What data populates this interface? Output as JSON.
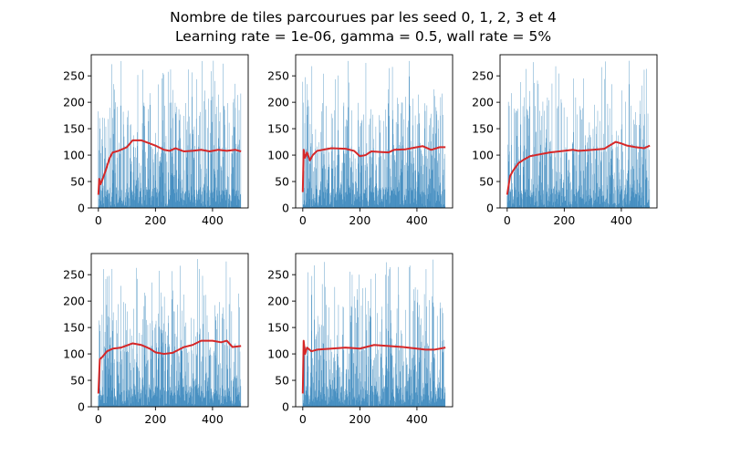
{
  "figure": {
    "title_line1": "Nombre de tiles parcourues par les seed 0, 1, 2, 3 et 4",
    "title_line2": "Learning rate = 1e-06, gamma = 0.5, wall rate = 5%"
  },
  "colors": {
    "bar": "#1f77b4",
    "line": "#d62728",
    "axes": "#000000",
    "background": "#ffffff"
  },
  "chart_data": [
    {
      "type": "bar",
      "seed": 0,
      "xlim": [
        -25,
        525
      ],
      "ylim": [
        0,
        290
      ],
      "xticks": [
        0,
        200,
        400
      ],
      "yticks": [
        0,
        50,
        100,
        150,
        200,
        250
      ],
      "n_episodes": 500,
      "bar_range": [
        0,
        280
      ],
      "bar_mean": 108,
      "moving_average": [
        [
          0,
          25
        ],
        [
          3,
          55
        ],
        [
          8,
          45
        ],
        [
          15,
          55
        ],
        [
          25,
          70
        ],
        [
          40,
          95
        ],
        [
          50,
          105
        ],
        [
          70,
          108
        ],
        [
          100,
          115
        ],
        [
          120,
          128
        ],
        [
          150,
          128
        ],
        [
          180,
          122
        ],
        [
          200,
          118
        ],
        [
          230,
          110
        ],
        [
          250,
          108
        ],
        [
          270,
          113
        ],
        [
          300,
          107
        ],
        [
          330,
          108
        ],
        [
          360,
          110
        ],
        [
          390,
          107
        ],
        [
          420,
          110
        ],
        [
          450,
          108
        ],
        [
          480,
          110
        ],
        [
          500,
          107
        ]
      ]
    },
    {
      "type": "bar",
      "seed": 1,
      "xlim": [
        -25,
        525
      ],
      "ylim": [
        0,
        290
      ],
      "xticks": [
        0,
        200,
        400
      ],
      "yticks": [
        0,
        50,
        100,
        150,
        200,
        250
      ],
      "n_episodes": 500,
      "bar_range": [
        0,
        280
      ],
      "bar_mean": 108,
      "moving_average": [
        [
          0,
          30
        ],
        [
          3,
          110
        ],
        [
          8,
          95
        ],
        [
          15,
          105
        ],
        [
          25,
          90
        ],
        [
          35,
          100
        ],
        [
          50,
          108
        ],
        [
          100,
          113
        ],
        [
          150,
          112
        ],
        [
          180,
          108
        ],
        [
          200,
          98
        ],
        [
          220,
          100
        ],
        [
          240,
          107
        ],
        [
          270,
          106
        ],
        [
          300,
          105
        ],
        [
          320,
          110
        ],
        [
          360,
          111
        ],
        [
          400,
          115
        ],
        [
          420,
          117
        ],
        [
          450,
          110
        ],
        [
          480,
          115
        ],
        [
          500,
          115
        ]
      ]
    },
    {
      "type": "bar",
      "seed": 2,
      "xlim": [
        -25,
        525
      ],
      "ylim": [
        0,
        290
      ],
      "xticks": [
        0,
        200,
        400
      ],
      "yticks": [
        0,
        50,
        100,
        150,
        200,
        250
      ],
      "n_episodes": 500,
      "bar_range": [
        0,
        280
      ],
      "bar_mean": 108,
      "moving_average": [
        [
          0,
          25
        ],
        [
          10,
          60
        ],
        [
          20,
          70
        ],
        [
          40,
          85
        ],
        [
          60,
          92
        ],
        [
          80,
          98
        ],
        [
          100,
          100
        ],
        [
          150,
          105
        ],
        [
          200,
          108
        ],
        [
          230,
          110
        ],
        [
          250,
          108
        ],
        [
          300,
          110
        ],
        [
          340,
          112
        ],
        [
          380,
          125
        ],
        [
          400,
          122
        ],
        [
          420,
          118
        ],
        [
          450,
          115
        ],
        [
          480,
          113
        ],
        [
          500,
          118
        ]
      ]
    },
    {
      "type": "bar",
      "seed": 3,
      "xlim": [
        -25,
        525
      ],
      "ylim": [
        0,
        290
      ],
      "xticks": [
        0,
        200,
        400
      ],
      "yticks": [
        0,
        50,
        100,
        150,
        200,
        250
      ],
      "n_episodes": 500,
      "bar_range": [
        0,
        280
      ],
      "bar_mean": 110,
      "moving_average": [
        [
          0,
          25
        ],
        [
          5,
          90
        ],
        [
          15,
          95
        ],
        [
          30,
          105
        ],
        [
          50,
          110
        ],
        [
          80,
          112
        ],
        [
          120,
          120
        ],
        [
          150,
          117
        ],
        [
          180,
          110
        ],
        [
          200,
          103
        ],
        [
          230,
          100
        ],
        [
          260,
          102
        ],
        [
          300,
          113
        ],
        [
          330,
          117
        ],
        [
          360,
          125
        ],
        [
          400,
          125
        ],
        [
          430,
          122
        ],
        [
          450,
          125
        ],
        [
          470,
          113
        ],
        [
          500,
          115
        ]
      ]
    },
    {
      "type": "bar",
      "seed": 4,
      "xlim": [
        -25,
        525
      ],
      "ylim": [
        0,
        290
      ],
      "xticks": [
        0,
        200,
        400
      ],
      "yticks": [
        0,
        50,
        100,
        150,
        200,
        250
      ],
      "n_episodes": 500,
      "bar_range": [
        0,
        280
      ],
      "bar_mean": 108,
      "moving_average": [
        [
          0,
          25
        ],
        [
          3,
          125
        ],
        [
          8,
          100
        ],
        [
          15,
          112
        ],
        [
          30,
          105
        ],
        [
          50,
          108
        ],
        [
          100,
          110
        ],
        [
          150,
          112
        ],
        [
          200,
          110
        ],
        [
          250,
          117
        ],
        [
          300,
          115
        ],
        [
          350,
          113
        ],
        [
          400,
          110
        ],
        [
          430,
          108
        ],
        [
          460,
          108
        ],
        [
          500,
          112
        ]
      ]
    }
  ]
}
